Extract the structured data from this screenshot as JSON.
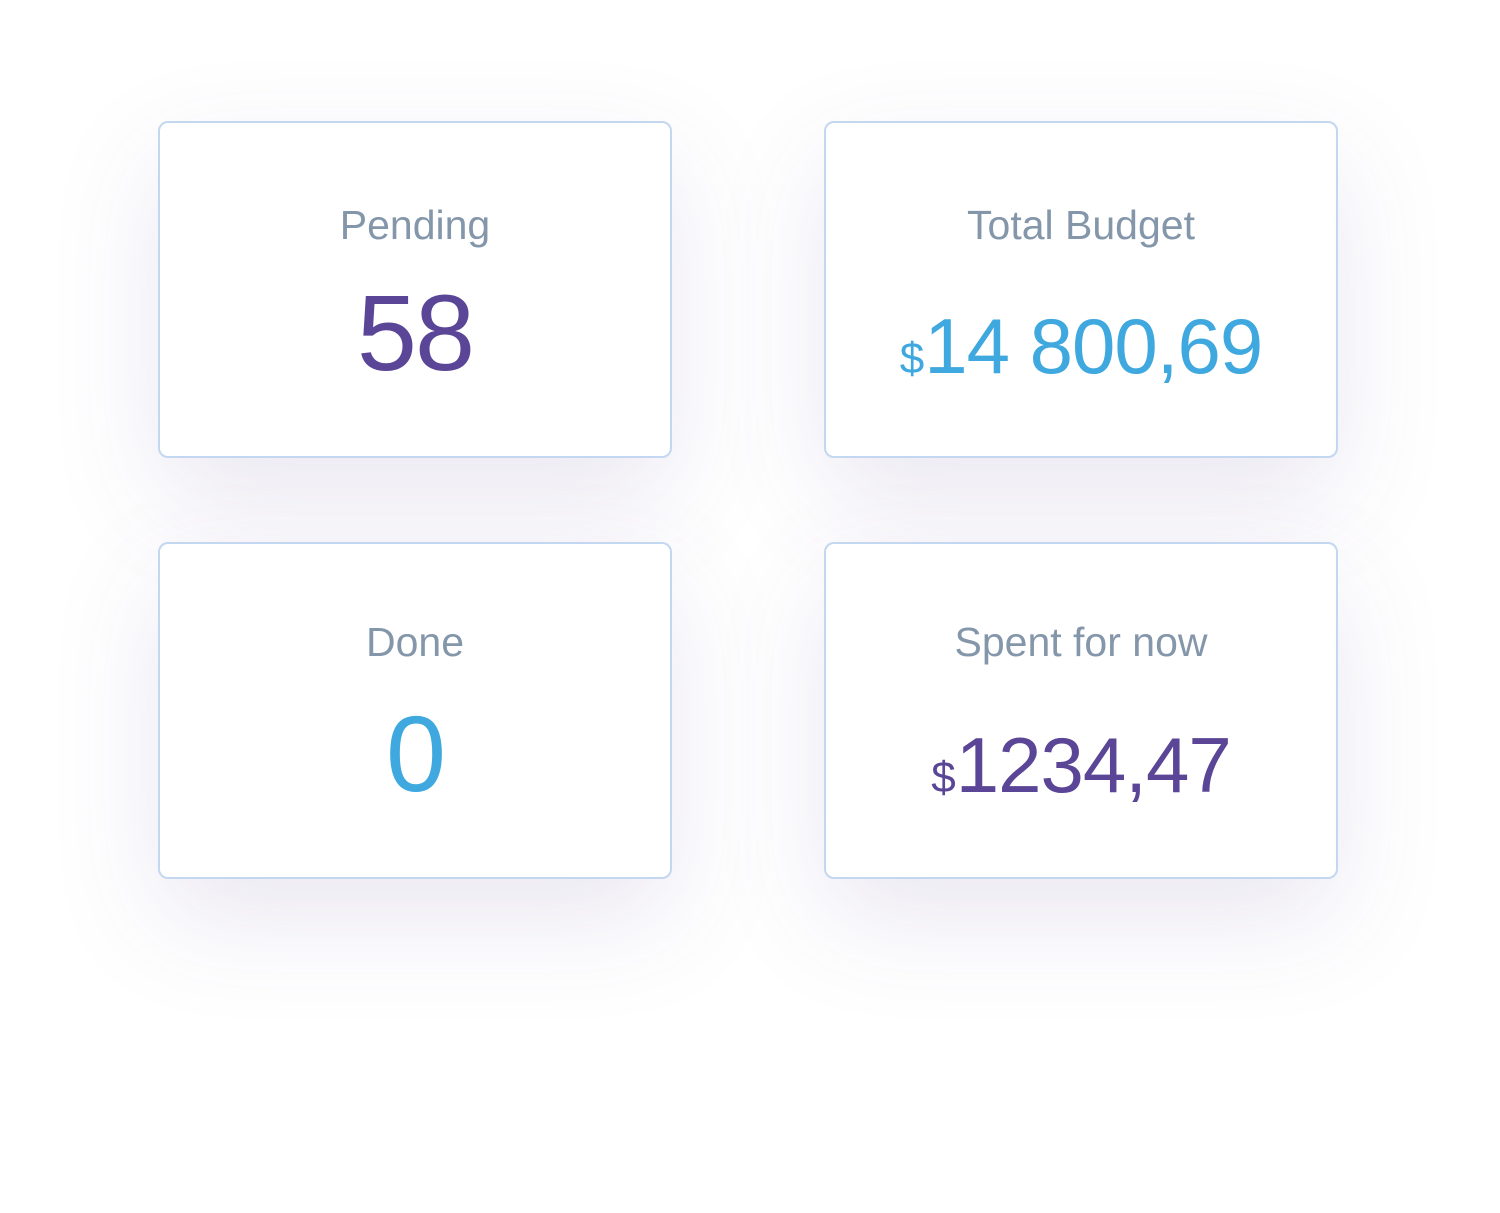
{
  "colors": {
    "purple": "#5a4596",
    "blue": "#3ea8df",
    "label": "#8496a9",
    "border": "#c3d7f0"
  },
  "cards": [
    {
      "label": "Pending",
      "value": "58"
    },
    {
      "label": "Total Budget",
      "currency": "$",
      "value": "14 800,69"
    },
    {
      "label": "Done",
      "value": "0"
    },
    {
      "label": "Spent for now",
      "currency": "$",
      "value": "1234,47"
    }
  ]
}
